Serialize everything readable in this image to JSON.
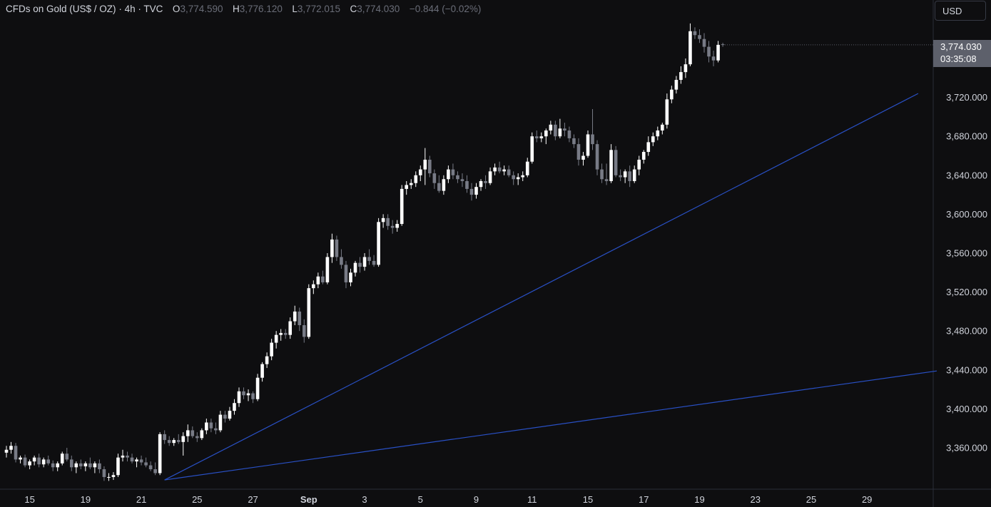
{
  "header": {
    "symbol": "CFDs on Gold (US$ / OZ)",
    "sep1": "·",
    "interval": "4h",
    "sep2": "·",
    "source": "TVC",
    "o_label": "O",
    "o_value": "3,774.590",
    "h_label": "H",
    "h_value": "3,776.120",
    "l_label": "L",
    "l_value": "3,772.015",
    "c_label": "C",
    "c_value": "3,774.030",
    "change": "−0.844 (−0.02%)"
  },
  "currency_button": {
    "label": "USD"
  },
  "last_price": {
    "value": "3,774.030",
    "countdown": "03:35:08"
  },
  "colors": {
    "background": "#0e0e10",
    "candle_up": "#ffffff",
    "candle_down": "#787b86",
    "trendline": "#2950c5",
    "axis_text": "#d1d4dc"
  },
  "chart_data": {
    "type": "candlestick",
    "instrument": "CFDs on Gold (US$ / OZ)",
    "interval": "4h",
    "y_axis": {
      "side": "right",
      "ticks": [
        3360,
        3400,
        3440,
        3480,
        3520,
        3560,
        3600,
        3640,
        3680,
        3720
      ],
      "tick_labels": [
        "3,360.000",
        "3,400.000",
        "3,440.000",
        "3,480.000",
        "3,520.000",
        "3,560.000",
        "3,600.000",
        "3,640.000",
        "3,680.000",
        "3,720.000"
      ],
      "range": [
        3330,
        3800
      ]
    },
    "x_axis": {
      "tick_labels": [
        "15",
        "19",
        "21",
        "25",
        "27",
        "Sep",
        "3",
        "5",
        "9",
        "11",
        "15",
        "17",
        "19",
        "23",
        "25",
        "29"
      ],
      "tick_positions": [
        5,
        17,
        29,
        41,
        53,
        65,
        77,
        89,
        101,
        113,
        125,
        137,
        149,
        161,
        173,
        185
      ]
    },
    "candles_ohlc": [
      [
        3355,
        3362,
        3350,
        3358
      ],
      [
        3358,
        3366,
        3354,
        3362
      ],
      [
        3362,
        3365,
        3345,
        3348
      ],
      [
        3348,
        3352,
        3344,
        3350
      ],
      [
        3350,
        3353,
        3340,
        3342
      ],
      [
        3342,
        3348,
        3338,
        3346
      ],
      [
        3346,
        3352,
        3342,
        3350
      ],
      [
        3350,
        3354,
        3340,
        3343
      ],
      [
        3343,
        3350,
        3340,
        3348
      ],
      [
        3348,
        3352,
        3342,
        3344
      ],
      [
        3344,
        3347,
        3336,
        3340
      ],
      [
        3340,
        3346,
        3336,
        3344
      ],
      [
        3344,
        3356,
        3342,
        3354
      ],
      [
        3354,
        3360,
        3346,
        3348
      ],
      [
        3348,
        3352,
        3336,
        3340
      ],
      [
        3340,
        3346,
        3334,
        3344
      ],
      [
        3344,
        3348,
        3338,
        3341
      ],
      [
        3341,
        3346,
        3336,
        3344
      ],
      [
        3344,
        3350,
        3338,
        3340
      ],
      [
        3340,
        3346,
        3334,
        3344
      ],
      [
        3344,
        3348,
        3334,
        3338
      ],
      [
        3338,
        3341,
        3326,
        3330
      ],
      [
        3330,
        3334,
        3326,
        3330
      ],
      [
        3330,
        3335,
        3327,
        3332
      ],
      [
        3332,
        3354,
        3330,
        3350
      ],
      [
        3350,
        3358,
        3346,
        3352
      ],
      [
        3352,
        3356,
        3346,
        3350
      ],
      [
        3350,
        3354,
        3344,
        3346
      ],
      [
        3346,
        3350,
        3340,
        3348
      ],
      [
        3348,
        3352,
        3342,
        3345
      ],
      [
        3345,
        3350,
        3340,
        3342
      ],
      [
        3342,
        3346,
        3336,
        3338
      ],
      [
        3338,
        3345,
        3332,
        3334
      ],
      [
        3334,
        3376,
        3332,
        3374
      ],
      [
        3374,
        3378,
        3364,
        3368
      ],
      [
        3368,
        3372,
        3362,
        3365
      ],
      [
        3365,
        3370,
        3362,
        3368
      ],
      [
        3368,
        3374,
        3364,
        3366
      ],
      [
        3366,
        3376,
        3352,
        3372
      ],
      [
        3372,
        3384,
        3366,
        3378
      ],
      [
        3378,
        3382,
        3370,
        3372
      ],
      [
        3372,
        3376,
        3366,
        3370
      ],
      [
        3370,
        3380,
        3368,
        3378
      ],
      [
        3378,
        3390,
        3374,
        3386
      ],
      [
        3386,
        3390,
        3376,
        3380
      ],
      [
        3380,
        3386,
        3374,
        3378
      ],
      [
        3378,
        3398,
        3376,
        3394
      ],
      [
        3394,
        3398,
        3386,
        3390
      ],
      [
        3390,
        3402,
        3388,
        3398
      ],
      [
        3398,
        3410,
        3394,
        3406
      ],
      [
        3406,
        3422,
        3402,
        3418
      ],
      [
        3418,
        3422,
        3410,
        3414
      ],
      [
        3414,
        3420,
        3408,
        3416
      ],
      [
        3416,
        3418,
        3406,
        3410
      ],
      [
        3410,
        3436,
        3408,
        3432
      ],
      [
        3432,
        3448,
        3428,
        3446
      ],
      [
        3446,
        3458,
        3442,
        3454
      ],
      [
        3454,
        3472,
        3450,
        3468
      ],
      [
        3468,
        3480,
        3462,
        3476
      ],
      [
        3476,
        3482,
        3470,
        3478
      ],
      [
        3478,
        3482,
        3472,
        3476
      ],
      [
        3476,
        3494,
        3472,
        3490
      ],
      [
        3490,
        3506,
        3486,
        3500
      ],
      [
        3500,
        3504,
        3480,
        3486
      ],
      [
        3486,
        3492,
        3468,
        3474
      ],
      [
        3474,
        3528,
        3472,
        3524
      ],
      [
        3524,
        3532,
        3518,
        3528
      ],
      [
        3528,
        3540,
        3524,
        3536
      ],
      [
        3536,
        3542,
        3528,
        3530
      ],
      [
        3530,
        3560,
        3528,
        3556
      ],
      [
        3556,
        3580,
        3550,
        3574
      ],
      [
        3574,
        3578,
        3552,
        3556
      ],
      [
        3556,
        3564,
        3544,
        3548
      ],
      [
        3548,
        3552,
        3524,
        3530
      ],
      [
        3530,
        3544,
        3526,
        3540
      ],
      [
        3540,
        3552,
        3536,
        3550
      ],
      [
        3550,
        3556,
        3540,
        3546
      ],
      [
        3546,
        3560,
        3542,
        3556
      ],
      [
        3556,
        3564,
        3548,
        3552
      ],
      [
        3552,
        3558,
        3546,
        3548
      ],
      [
        3548,
        3596,
        3546,
        3592
      ],
      [
        3592,
        3600,
        3586,
        3596
      ],
      [
        3596,
        3600,
        3584,
        3588
      ],
      [
        3588,
        3594,
        3580,
        3586
      ],
      [
        3586,
        3594,
        3582,
        3590
      ],
      [
        3590,
        3630,
        3588,
        3626
      ],
      [
        3626,
        3634,
        3620,
        3630
      ],
      [
        3630,
        3636,
        3626,
        3632
      ],
      [
        3632,
        3644,
        3628,
        3640
      ],
      [
        3640,
        3650,
        3634,
        3646
      ],
      [
        3646,
        3668,
        3630,
        3656
      ],
      [
        3656,
        3660,
        3638,
        3642
      ],
      [
        3642,
        3646,
        3626,
        3632
      ],
      [
        3632,
        3640,
        3622,
        3624
      ],
      [
        3624,
        3640,
        3620,
        3636
      ],
      [
        3636,
        3650,
        3632,
        3646
      ],
      [
        3646,
        3652,
        3636,
        3640
      ],
      [
        3640,
        3644,
        3632,
        3636
      ],
      [
        3636,
        3642,
        3628,
        3634
      ],
      [
        3634,
        3640,
        3622,
        3626
      ],
      [
        3626,
        3632,
        3614,
        3620
      ],
      [
        3620,
        3632,
        3616,
        3628
      ],
      [
        3628,
        3636,
        3624,
        3634
      ],
      [
        3634,
        3640,
        3626,
        3632
      ],
      [
        3632,
        3648,
        3630,
        3644
      ],
      [
        3644,
        3652,
        3640,
        3648
      ],
      [
        3648,
        3654,
        3642,
        3644
      ],
      [
        3644,
        3650,
        3640,
        3646
      ],
      [
        3646,
        3650,
        3638,
        3640
      ],
      [
        3640,
        3644,
        3630,
        3636
      ],
      [
        3636,
        3642,
        3630,
        3638
      ],
      [
        3638,
        3644,
        3634,
        3640
      ],
      [
        3640,
        3658,
        3638,
        3654
      ],
      [
        3654,
        3684,
        3652,
        3680
      ],
      [
        3680,
        3686,
        3674,
        3678
      ],
      [
        3678,
        3684,
        3674,
        3680
      ],
      [
        3680,
        3688,
        3672,
        3686
      ],
      [
        3686,
        3696,
        3682,
        3692
      ],
      [
        3692,
        3696,
        3676,
        3680
      ],
      [
        3680,
        3698,
        3678,
        3688
      ],
      [
        3688,
        3694,
        3680,
        3686
      ],
      [
        3686,
        3690,
        3674,
        3678
      ],
      [
        3678,
        3682,
        3668,
        3672
      ],
      [
        3672,
        3678,
        3650,
        3656
      ],
      [
        3656,
        3664,
        3650,
        3660
      ],
      [
        3660,
        3686,
        3658,
        3682
      ],
      [
        3682,
        3708,
        3666,
        3672
      ],
      [
        3672,
        3676,
        3640,
        3646
      ],
      [
        3646,
        3652,
        3632,
        3636
      ],
      [
        3636,
        3652,
        3630,
        3634
      ],
      [
        3634,
        3672,
        3632,
        3666
      ],
      [
        3666,
        3670,
        3638,
        3640
      ],
      [
        3640,
        3646,
        3634,
        3638
      ],
      [
        3638,
        3646,
        3632,
        3644
      ],
      [
        3644,
        3650,
        3628,
        3634
      ],
      [
        3634,
        3650,
        3632,
        3646
      ],
      [
        3646,
        3660,
        3640,
        3656
      ],
      [
        3656,
        3666,
        3652,
        3664
      ],
      [
        3664,
        3680,
        3660,
        3674
      ],
      [
        3674,
        3684,
        3670,
        3680
      ],
      [
        3680,
        3690,
        3676,
        3686
      ],
      [
        3686,
        3694,
        3682,
        3692
      ],
      [
        3692,
        3724,
        3688,
        3718
      ],
      [
        3718,
        3732,
        3714,
        3728
      ],
      [
        3728,
        3742,
        3724,
        3738
      ],
      [
        3738,
        3752,
        3734,
        3746
      ],
      [
        3746,
        3760,
        3740,
        3754
      ],
      [
        3754,
        3796,
        3752,
        3788
      ],
      [
        3788,
        3792,
        3780,
        3784
      ],
      [
        3784,
        3790,
        3776,
        3780
      ],
      [
        3780,
        3786,
        3766,
        3772
      ],
      [
        3772,
        3778,
        3756,
        3762
      ],
      [
        3762,
        3768,
        3752,
        3758
      ],
      [
        3758,
        3778,
        3756,
        3774
      ],
      [
        3774.59,
        3776.12,
        3772.015,
        3774.03
      ]
    ],
    "trendlines": [
      {
        "from": {
          "bar": 34,
          "price": 3327
        },
        "to": {
          "bar": 196,
          "price": 3724
        }
      },
      {
        "from": {
          "bar": 34,
          "price": 3327
        },
        "to": {
          "bar": 200,
          "price": 3439
        }
      }
    ]
  }
}
